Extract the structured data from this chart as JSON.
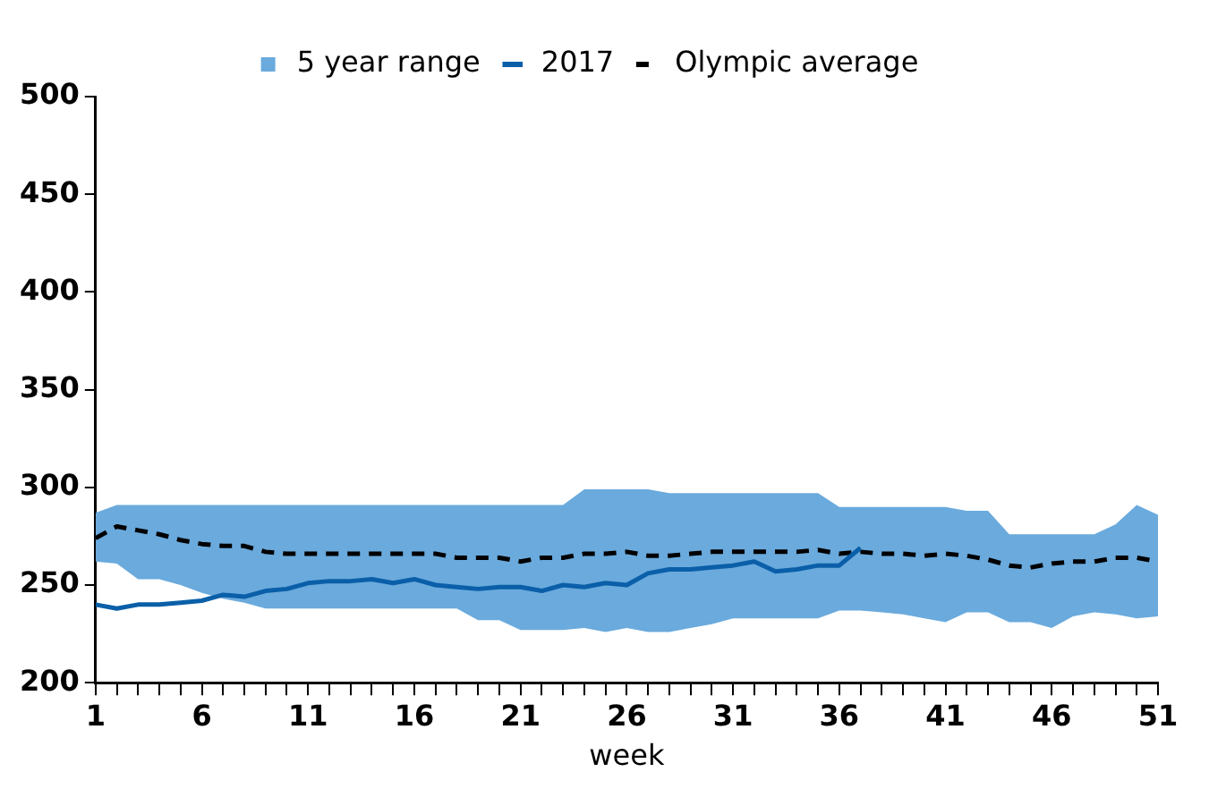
{
  "chart_data": {
    "type": "line",
    "xlabel": "week",
    "x": [
      1,
      2,
      3,
      4,
      5,
      6,
      7,
      8,
      9,
      10,
      11,
      12,
      13,
      14,
      15,
      16,
      17,
      18,
      19,
      20,
      21,
      22,
      23,
      24,
      25,
      26,
      27,
      28,
      29,
      30,
      31,
      32,
      33,
      34,
      35,
      36,
      37,
      38,
      39,
      40,
      41,
      42,
      43,
      44,
      45,
      46,
      47,
      48,
      49,
      50,
      51
    ],
    "series": [
      {
        "name": "5 year range",
        "type": "area",
        "color": "#6aaadd",
        "values": [
          null,
          null,
          null,
          null,
          null,
          null,
          null,
          null,
          null,
          null,
          null,
          null,
          null,
          null,
          null,
          null,
          null,
          null,
          null,
          null,
          null,
          null,
          null,
          null,
          null,
          null,
          null,
          null,
          null,
          null,
          null,
          null,
          null,
          null,
          null,
          null,
          null,
          null,
          null,
          null,
          null,
          null,
          null,
          null,
          null,
          null,
          null,
          null,
          null,
          null,
          null
        ],
        "lower": [
          262,
          261,
          253,
          253,
          250,
          246,
          243,
          241,
          238,
          238,
          238,
          238,
          238,
          238,
          238,
          238,
          238,
          238,
          232,
          232,
          227,
          227,
          227,
          228,
          226,
          228,
          226,
          226,
          228,
          230,
          233,
          233,
          233,
          233,
          233,
          237,
          237,
          236,
          235,
          233,
          231,
          236,
          236,
          231,
          231,
          228,
          234,
          236,
          235,
          233,
          234
        ],
        "upper": [
          287,
          291,
          291,
          291,
          291,
          291,
          291,
          291,
          291,
          291,
          291,
          291,
          291,
          291,
          291,
          291,
          291,
          291,
          291,
          291,
          291,
          291,
          291,
          299,
          299,
          299,
          299,
          297,
          297,
          297,
          297,
          297,
          297,
          297,
          297,
          290,
          290,
          290,
          290,
          290,
          290,
          288,
          288,
          276,
          276,
          276,
          276,
          276,
          281,
          291,
          286
        ]
      },
      {
        "name": "2017",
        "color": "#0a5fa8",
        "line_style": "solid",
        "values": [
          240,
          238,
          240,
          240,
          241,
          242,
          245,
          244,
          247,
          248,
          251,
          252,
          252,
          253,
          251,
          253,
          250,
          249,
          248,
          249,
          249,
          247,
          250,
          249,
          251,
          250,
          256,
          258,
          258,
          259,
          260,
          262,
          257,
          258,
          260,
          260,
          269,
          null,
          null,
          null,
          null,
          null,
          null,
          null,
          null,
          null,
          null,
          null,
          null,
          null,
          null
        ]
      },
      {
        "name": "Olympic average",
        "color": "#000000",
        "line_style": "dashed",
        "values": [
          274,
          280,
          278,
          276,
          273,
          271,
          270,
          270,
          267,
          266,
          266,
          266,
          266,
          266,
          266,
          266,
          266,
          264,
          264,
          264,
          262,
          264,
          264,
          266,
          266,
          267,
          265,
          265,
          266,
          267,
          267,
          267,
          267,
          267,
          268,
          266,
          267,
          266,
          266,
          265,
          266,
          265,
          263,
          260,
          259,
          261,
          262,
          262,
          264,
          264,
          262
        ]
      }
    ],
    "xlim": [
      1,
      51
    ],
    "xticks": [
      1,
      {
        "value": 2,
        "label": null
      },
      {
        "value": 3,
        "label": null
      },
      {
        "value": 4,
        "label": null
      },
      {
        "value": 5,
        "label": null
      },
      6,
      {
        "value": 7,
        "label": null
      },
      {
        "value": 8,
        "label": null
      },
      {
        "value": 9,
        "label": null
      },
      {
        "value": 10,
        "label": null
      },
      11,
      {
        "value": 12,
        "label": null
      },
      {
        "value": 13,
        "label": null
      },
      {
        "value": 14,
        "label": null
      },
      {
        "value": 15,
        "label": null
      },
      16,
      {
        "value": 17,
        "label": null
      },
      {
        "value": 18,
        "label": null
      },
      {
        "value": 19,
        "label": null
      },
      {
        "value": 20,
        "label": null
      },
      21,
      {
        "value": 22,
        "label": null
      },
      {
        "value": 23,
        "label": null
      },
      {
        "value": 24,
        "label": null
      },
      {
        "value": 25,
        "label": null
      },
      26,
      {
        "value": 27,
        "label": null
      },
      {
        "value": 28,
        "label": null
      },
      {
        "value": 29,
        "label": null
      },
      {
        "value": 30,
        "label": null
      },
      31,
      {
        "value": 32,
        "label": null
      },
      {
        "value": 33,
        "label": null
      },
      {
        "value": 34,
        "label": null
      },
      {
        "value": 35,
        "label": null
      },
      36,
      {
        "value": 37,
        "label": null
      },
      {
        "value": 38,
        "label": null
      },
      {
        "value": 39,
        "label": null
      },
      {
        "value": 40,
        "label": null
      },
      41,
      {
        "value": 42,
        "label": null
      },
      {
        "value": 43,
        "label": null
      },
      {
        "value": 44,
        "label": null
      },
      {
        "value": 45,
        "label": null
      },
      46,
      {
        "value": 47,
        "label": null
      },
      {
        "value": 48,
        "label": null
      },
      {
        "value": 49,
        "label": null
      },
      {
        "value": 50,
        "label": null
      },
      51
    ],
    "ylim": [
      200,
      500
    ],
    "yticks": [
      200,
      250,
      300,
      350,
      400,
      450,
      500
    ],
    "grid": false,
    "legend": "top",
    "marker": "none"
  }
}
